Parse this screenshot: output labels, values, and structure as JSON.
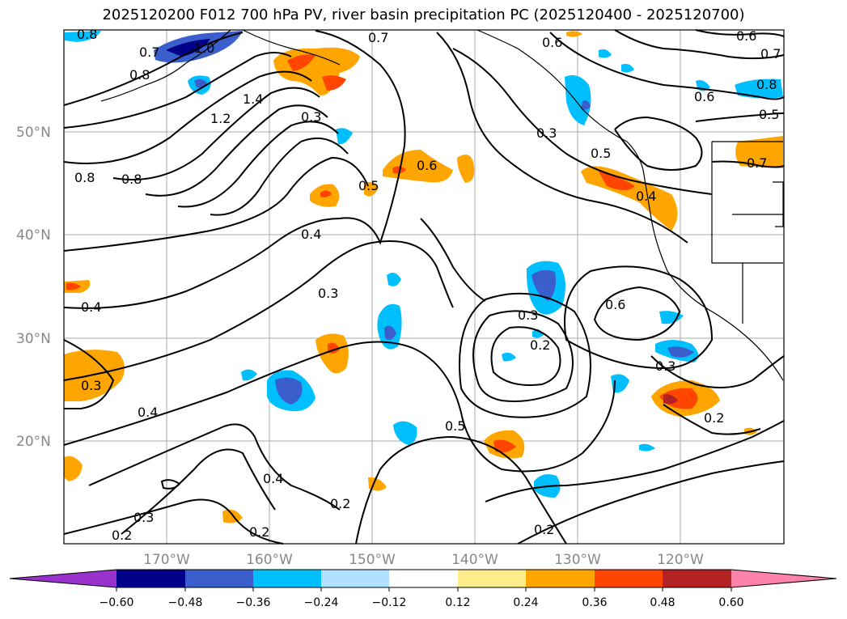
{
  "title": "2025120200 F012 700 hPa PV, river basin precipitation PC (2025120400 - 2025120700)",
  "map": {
    "lat_labels": [
      "50°N",
      "40°N",
      "30°N",
      "20°N"
    ],
    "lon_labels": [
      "170°W",
      "160°W",
      "150°W",
      "140°W",
      "130°W",
      "120°W"
    ],
    "contour_labels": [
      "0.8",
      "0.7",
      "1.0",
      "0.8",
      "1.4",
      "1.2",
      "0.3",
      "0.7",
      "0.6",
      "0.6",
      "0.7",
      "0.6",
      "0.8",
      "0.5",
      "0.8",
      "0.8",
      "0.3",
      "0.5",
      "0.5",
      "0.6",
      "0.4",
      "0.7",
      "0.4",
      "0.3",
      "0.4",
      "0.6",
      "0.3",
      "0.2",
      "0.3",
      "0.3",
      "0.4",
      "0.5",
      "0.4",
      "0.2",
      "0.2",
      "0.2",
      "0.3",
      "0.2",
      "0.2"
    ]
  },
  "colorbar": {
    "ticks": [
      "−0.60",
      "−0.48",
      "−0.36",
      "−0.24",
      "−0.12",
      "0.12",
      "0.24",
      "0.36",
      "0.48",
      "0.60"
    ],
    "colors": [
      "#9932cc",
      "#00008b",
      "#3a5fcd",
      "#00bfff",
      "#b0e2ff",
      "#ffffff",
      "#ffec8b",
      "#ffa500",
      "#ff4500",
      "#b22222",
      "#ff82ab"
    ]
  }
}
